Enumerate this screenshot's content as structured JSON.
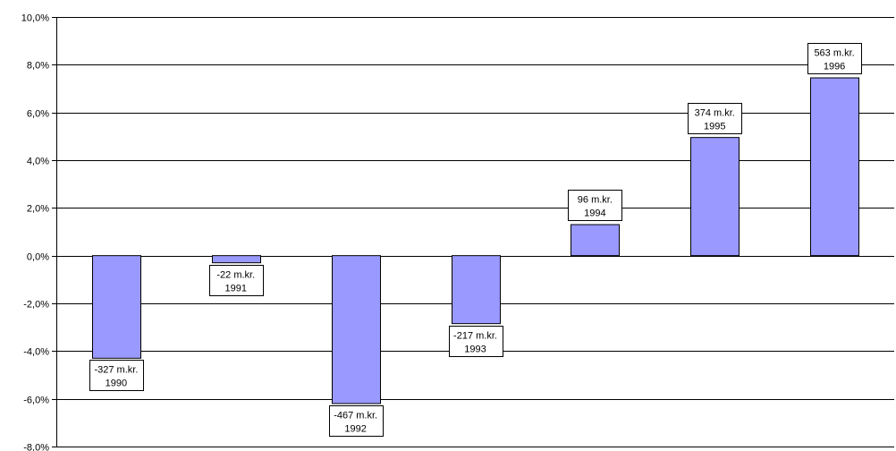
{
  "chart_data": {
    "type": "bar",
    "title": "",
    "xlabel": "",
    "ylabel": "",
    "ylim": [
      -8,
      10
    ],
    "y_ticks": [
      10,
      8,
      6,
      4,
      2,
      0,
      -2,
      -4,
      -6,
      -8
    ],
    "y_tick_labels": [
      "10,0%",
      "8,0%",
      "6,0%",
      "4,0%",
      "2,0%",
      "0,0%",
      "-2,0%",
      "-4,0%",
      "-6,0%",
      "-8,0%"
    ],
    "grid": true,
    "legend": "none",
    "categories": [
      "1990",
      "1991",
      "1992",
      "1993",
      "1994",
      "1995",
      "1996"
    ],
    "values": [
      -4.3,
      -0.3,
      -6.2,
      -2.85,
      1.3,
      4.95,
      7.45
    ],
    "data_labels": [
      [
        "-327 m.kr.",
        "1990"
      ],
      [
        "-22 m.kr.",
        "1991"
      ],
      [
        "-467 m.kr.",
        "1992"
      ],
      [
        "-217 m.kr.",
        "1993"
      ],
      [
        "96 m.kr.",
        "1994"
      ],
      [
        "374 m.kr.",
        "1995"
      ],
      [
        "563 m.kr.",
        "1996"
      ]
    ],
    "colors": {
      "bar_fill": "#9999ff",
      "bar_stroke": "#000000",
      "grid": "#000000",
      "axis": "#000000"
    }
  }
}
